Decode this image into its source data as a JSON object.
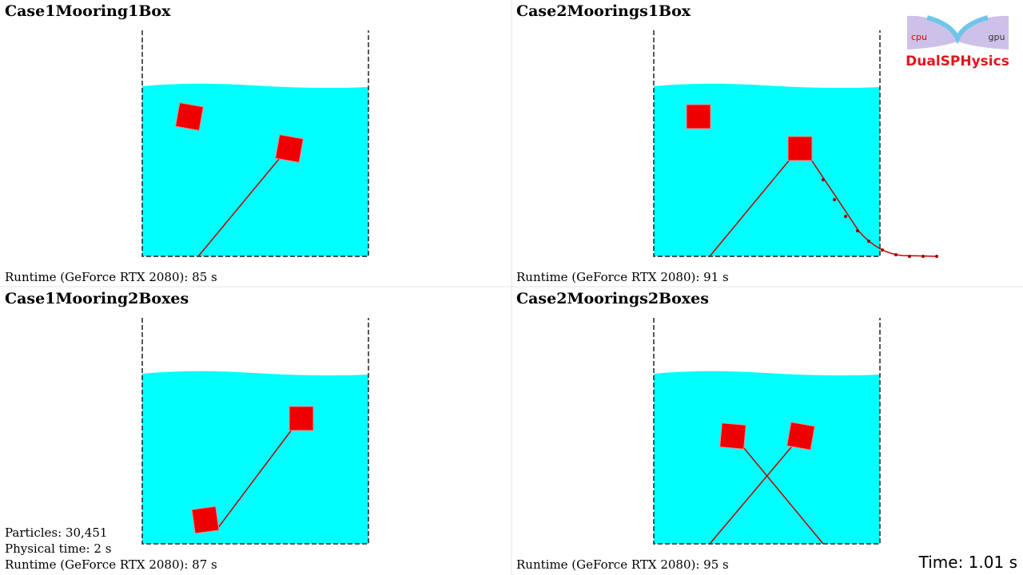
{
  "panels": [
    {
      "title": "Case1Mooring1Box",
      "runtime": "Runtime (GeForce RTX 2080): 85 s"
    },
    {
      "title": "Case2Moorings1Box",
      "runtime": "Runtime (GeForce RTX 2080): 91 s"
    },
    {
      "title": "Case1Mooring2Boxes",
      "runtime": "Runtime (GeForce RTX 2080): 87 s",
      "particles": "Particles: 30,451",
      "physical_time": "Physical time: 2 s"
    },
    {
      "title": "Case2Moorings2Boxes",
      "runtime": "Runtime (GeForce RTX 2080): 95 s"
    }
  ],
  "time": "Time: 1.01 s",
  "logo": {
    "cpu": "cpu",
    "gpu": "gpu",
    "name": "DualSPHysics"
  }
}
